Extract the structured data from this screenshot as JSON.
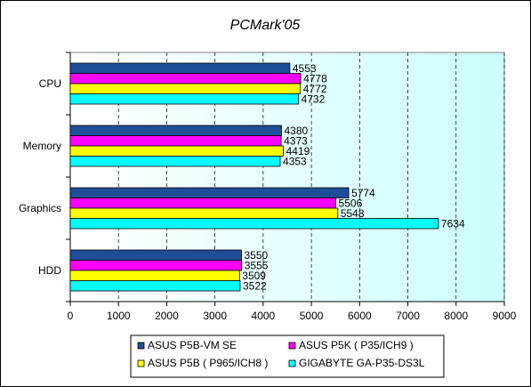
{
  "chart_data": {
    "type": "bar",
    "orientation": "horizontal",
    "title": "PCMark'05",
    "categories": [
      "CPU",
      "Memory",
      "Graphics",
      "HDD"
    ],
    "series": [
      {
        "name": "ASUS P5B-VM SE",
        "color": "#1f4e99",
        "values": [
          4553,
          4380,
          5774,
          3550
        ]
      },
      {
        "name": "ASUS P5K ( P35/ICH9 )",
        "color": "#ff00ff",
        "values": [
          4778,
          4373,
          5506,
          3555
        ]
      },
      {
        "name": "ASUS P5B ( P965/ICH8 )",
        "color": "#ffff00",
        "values": [
          4772,
          4419,
          5548,
          3509
        ]
      },
      {
        "name": "GIGABYTE GA-P35-DS3L",
        "color": "#00ffff",
        "values": [
          4732,
          4353,
          7634,
          3522
        ]
      }
    ],
    "xlim": [
      0,
      9000
    ],
    "x_ticks": [
      0,
      1000,
      2000,
      3000,
      4000,
      5000,
      6000,
      7000,
      8000,
      9000
    ],
    "grid": "vertical dashed",
    "legend_position": "bottom",
    "plot_background": "#e8ffff"
  }
}
